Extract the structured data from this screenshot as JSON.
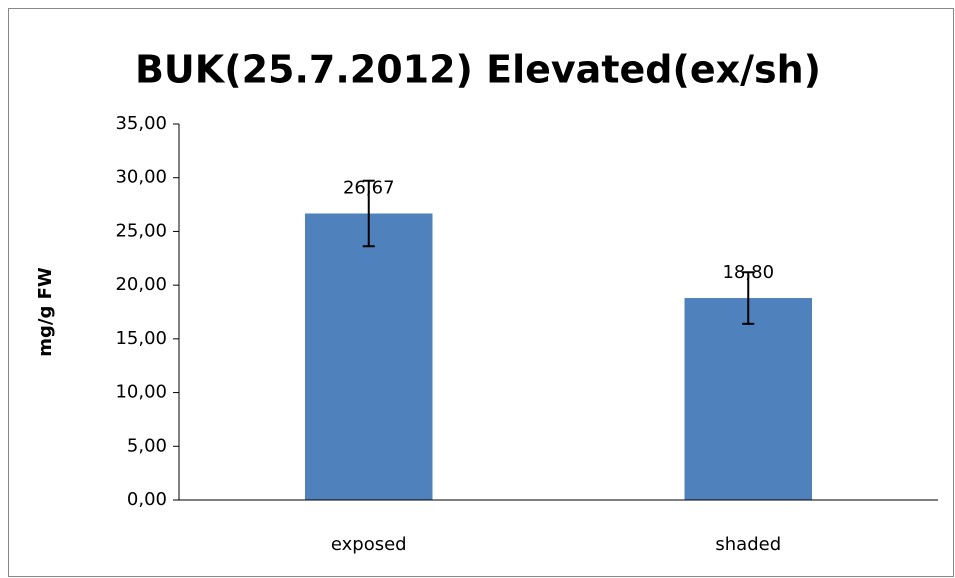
{
  "chart_data": {
    "type": "bar",
    "title": "BUK(25.7.2012) Elevated(ex/sh)",
    "ylabel": "mg/g FW",
    "categories": [
      "exposed",
      "shaded"
    ],
    "values": [
      26.67,
      18.8
    ],
    "value_labels": [
      "26,67",
      "18,80"
    ],
    "errors": [
      3.05,
      2.4
    ],
    "color": "#4f81bd",
    "ylim": [
      0,
      35
    ],
    "yticks": [
      {
        "value": 0,
        "label": "0,00"
      },
      {
        "value": 5,
        "label": "5,00"
      },
      {
        "value": 10,
        "label": "10,00"
      },
      {
        "value": 15,
        "label": "15,00"
      },
      {
        "value": 20,
        "label": "20,00"
      },
      {
        "value": 25,
        "label": "25,00"
      },
      {
        "value": 30,
        "label": "30,00"
      },
      {
        "value": 35,
        "label": "35,00"
      }
    ],
    "grid": false
  }
}
